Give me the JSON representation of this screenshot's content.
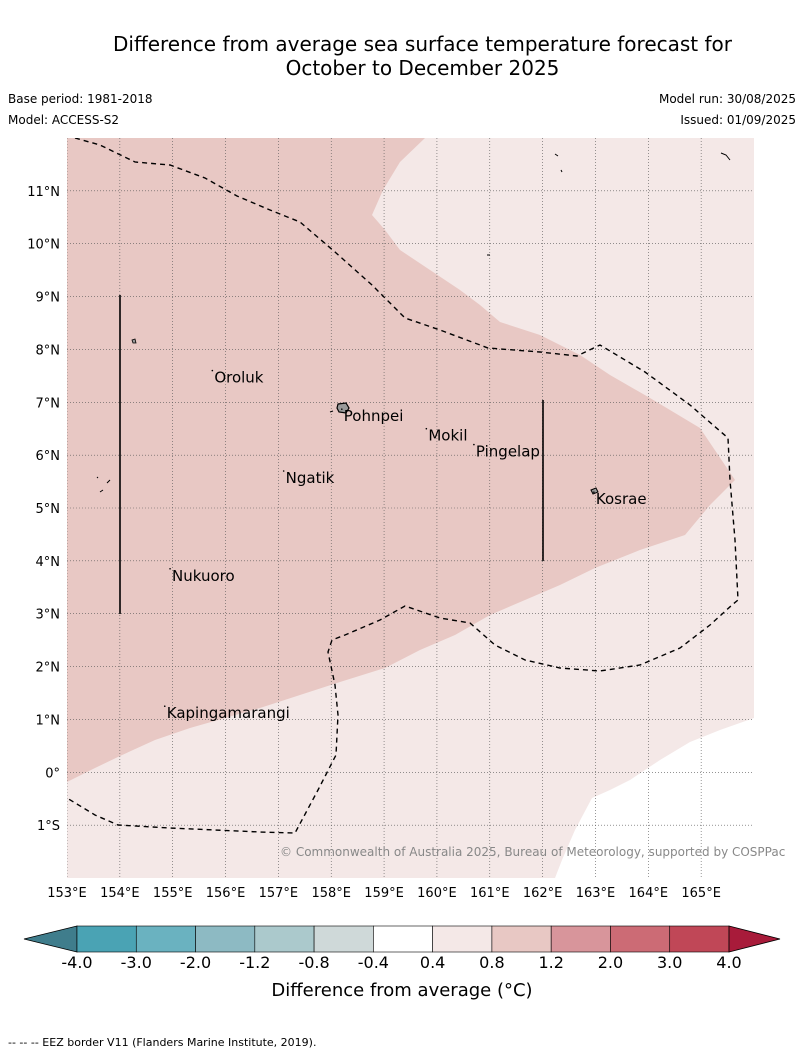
{
  "title": {
    "line1": "Difference from average sea surface temperature forecast for",
    "line2": "October to December 2025"
  },
  "meta": {
    "base_period": "Base period: 1981-2018",
    "model": "Model: ACCESS-S2",
    "model_run": "Model run: 30/08/2025",
    "issued": "Issued: 01/09/2025"
  },
  "map": {
    "lon_range": [
      153,
      166
    ],
    "lat_range": [
      -2,
      12
    ],
    "lon_ticks": [
      "153°E",
      "154°E",
      "155°E",
      "156°E",
      "157°E",
      "158°E",
      "159°E",
      "160°E",
      "161°E",
      "162°E",
      "163°E",
      "164°E",
      "165°E"
    ],
    "lat_ticks": [
      "11°N",
      "10°N",
      "9°N",
      "8°N",
      "7°N",
      "6°N",
      "5°N",
      "4°N",
      "3°N",
      "2°N",
      "1°N",
      "0°",
      "1°S"
    ],
    "places": [
      {
        "name": "Oroluk",
        "lon": 155.75,
        "lat": 7.6
      },
      {
        "name": "Pohnpei",
        "lon": 158.2,
        "lat": 6.87
      },
      {
        "name": "Mokil",
        "lon": 159.8,
        "lat": 6.5
      },
      {
        "name": "Pingelap",
        "lon": 160.7,
        "lat": 6.2
      },
      {
        "name": "Ngatik",
        "lon": 157.1,
        "lat": 5.7
      },
      {
        "name": "Kosrae",
        "lon": 162.97,
        "lat": 5.3
      },
      {
        "name": "Nukuoro",
        "lon": 154.95,
        "lat": 3.85
      },
      {
        "name": "Kapingamarangi",
        "lon": 154.85,
        "lat": 1.25
      }
    ],
    "copyright": "© Commonwealth of Australia 2025, Bureau of Meteorology, supported by COSPPac",
    "colors": {
      "anomaly_0_4_to_0_8": "#f4e8e7",
      "anomaly_0_8_to_1_2": "#e8c8c4",
      "anomaly_neutral": "#ffffff"
    }
  },
  "colorbar": {
    "ticks": [
      "-4.0",
      "-3.0",
      "-2.0",
      "-1.2",
      "-0.8",
      "-0.4",
      "0.4",
      "0.8",
      "1.2",
      "2.0",
      "3.0",
      "4.0"
    ],
    "colors": [
      "#3f7d8c",
      "#4aa3b4",
      "#6ab2c0",
      "#8dbac3",
      "#abc9cc",
      "#cfd9d9",
      "#ffffff",
      "#f4e8e7",
      "#e8c8c4",
      "#d8959b",
      "#cc6b75",
      "#c04757",
      "#a81b3a"
    ],
    "label": "Difference from average (°C)"
  },
  "footnote": "--  --  -- EEZ border V11 (Flanders Marine Institute, 2019)."
}
